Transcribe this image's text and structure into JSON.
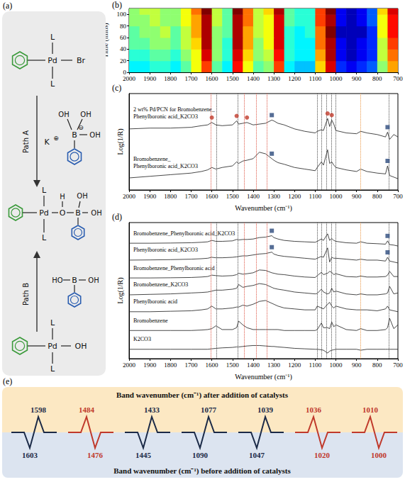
{
  "panel_a": {
    "letter": "(a)",
    "path_a": "Path A",
    "path_b": "Path B",
    "pd_br_complex": {
      "ligand": "L",
      "metal": "Pd",
      "group": "Br"
    },
    "borate": {
      "cation": "K",
      "cation_charge": "⊕",
      "boron": "B",
      "hydroxyl": "OH",
      "anion_charge": "⊖"
    },
    "intermediate": {
      "ligand": "L",
      "metal": "Pd",
      "oxygen": "O",
      "hydrogen": "H",
      "boron": "B",
      "hydroxyl": "OH"
    },
    "boronic_acid": {
      "boron": "B",
      "hydroxyl_left": "HO",
      "hydroxyl": "OH"
    },
    "pd_oh_complex": {
      "ligand": "L",
      "metal": "Pd",
      "group": "OH"
    }
  },
  "chart_data": [
    {
      "type": "heatmap",
      "letter": "(b)",
      "y_label": "Time (mins)",
      "x_bins": [
        2000,
        1950,
        1900,
        1850,
        1800,
        1750,
        1700,
        1650,
        1600,
        1550,
        1500,
        1450,
        1400,
        1350,
        1300,
        1250,
        1200,
        1150,
        1100,
        1050,
        1000,
        950,
        900,
        850,
        800,
        750,
        700
      ],
      "y_bins": [
        0,
        20,
        40,
        60,
        80,
        100,
        110
      ],
      "cells": [
        [
          0.35,
          0.35,
          0.4,
          0.4,
          0.35,
          0.45,
          0.6,
          0.8,
          0.45,
          0.35,
          0.85,
          0.6,
          0.45,
          0.5,
          0.8,
          0.35,
          0.3,
          0.3,
          0.65,
          0.9,
          0.15,
          0.1,
          0.15,
          0.2,
          0.5,
          0.7
        ],
        [
          0.4,
          0.4,
          0.45,
          0.45,
          0.4,
          0.5,
          0.6,
          0.9,
          0.5,
          0.4,
          0.9,
          0.65,
          0.5,
          0.55,
          0.85,
          0.4,
          0.35,
          0.35,
          0.7,
          0.95,
          0.1,
          0.05,
          0.1,
          0.15,
          0.55,
          0.75
        ],
        [
          0.45,
          0.45,
          0.5,
          0.5,
          0.45,
          0.55,
          0.65,
          0.95,
          0.5,
          0.4,
          0.95,
          0.7,
          0.5,
          0.6,
          0.9,
          0.4,
          0.35,
          0.35,
          0.75,
          0.95,
          0.1,
          0.05,
          0.1,
          0.15,
          0.55,
          0.8
        ],
        [
          0.45,
          0.5,
          0.5,
          0.55,
          0.45,
          0.55,
          0.7,
          0.95,
          0.5,
          0.45,
          0.95,
          0.7,
          0.55,
          0.6,
          0.9,
          0.4,
          0.35,
          0.4,
          0.75,
          1.0,
          0.05,
          0.05,
          0.05,
          0.15,
          0.6,
          0.85
        ],
        [
          0.5,
          0.5,
          0.55,
          0.5,
          0.5,
          0.6,
          0.7,
          0.95,
          0.55,
          0.45,
          0.95,
          0.75,
          0.55,
          0.6,
          0.9,
          0.45,
          0.4,
          0.4,
          0.8,
          0.95,
          0.1,
          0.05,
          0.1,
          0.2,
          0.6,
          0.85
        ],
        [
          0.5,
          0.55,
          0.55,
          0.5,
          0.5,
          0.6,
          0.75,
          1.0,
          0.55,
          0.45,
          1.0,
          0.75,
          0.55,
          0.65,
          0.95,
          0.45,
          0.4,
          0.4,
          0.8,
          1.0,
          0.1,
          0.05,
          0.1,
          0.2,
          0.65,
          0.9
        ]
      ],
      "zlim": [
        0,
        1
      ],
      "xlim": [
        2000,
        700
      ],
      "xticks": [
        2000,
        1900,
        1800,
        1700,
        1600,
        1500,
        1400,
        1300,
        1200,
        1100,
        1000,
        900,
        800,
        700
      ],
      "ylim": [
        0,
        110
      ],
      "yticks": [
        0,
        20,
        40,
        60,
        80,
        100
      ]
    },
    {
      "type": "line",
      "letter": "(c)",
      "x_label": "Wavenumber (cm⁻¹)",
      "y_label": "Log(1/R)",
      "tick_labels": "x",
      "x": [
        2000,
        1900,
        1800,
        1700,
        1650,
        1620,
        1600,
        1580,
        1550,
        1500,
        1480,
        1470,
        1450,
        1430,
        1400,
        1370,
        1340,
        1310,
        1300,
        1280,
        1250,
        1200,
        1150,
        1100,
        1090,
        1070,
        1060,
        1040,
        1030,
        1020,
        1010,
        1000,
        950,
        900,
        880,
        850,
        800,
        760,
        750,
        740,
        720,
        700
      ],
      "series": [
        {
          "name": "2 wt% Pd/PCN for Bromobenzene_Phenylboronic acid_K2CO3",
          "color": "#1a1a1a",
          "values": [
            7.6,
            7.7,
            7.7,
            7.8,
            8.0,
            8.1,
            8.4,
            8.1,
            8.0,
            8.1,
            8.6,
            8.2,
            8.3,
            8.4,
            8.1,
            8.2,
            8.3,
            8.7,
            8.6,
            8.3,
            8.1,
            7.6,
            7.3,
            7.1,
            7.3,
            7.5,
            7.4,
            8.9,
            7.9,
            8.7,
            8.2,
            7.4,
            7.1,
            7.0,
            7.3,
            7.1,
            6.9,
            6.6,
            7.2,
            6.3,
            6.9,
            6.6
          ],
          "markers": [
            {
              "x": 1600,
              "marker": "circle",
              "color": "#c0392b"
            },
            {
              "x": 1480,
              "marker": "circle",
              "color": "#c0392b"
            },
            {
              "x": 1430,
              "marker": "circle",
              "color": "#c0392b"
            },
            {
              "x": 1040,
              "marker": "circle",
              "color": "#c0392b"
            },
            {
              "x": 1020,
              "marker": "circle",
              "color": "#c0392b"
            },
            {
              "x": 1310,
              "marker": "square",
              "color": "#2c4a7c"
            },
            {
              "x": 750,
              "marker": "square",
              "color": "#2c4a7c"
            }
          ]
        },
        {
          "name": "Bromobenzene_Phenylboronic acid_K2CO3",
          "color": "#1a1a1a",
          "values": [
            1.5,
            1.7,
            1.9,
            2.1,
            2.3,
            2.5,
            2.8,
            2.6,
            2.8,
            3.0,
            3.5,
            3.3,
            3.6,
            3.7,
            3.9,
            4.7,
            4.5,
            3.9,
            3.7,
            3.4,
            3.2,
            2.8,
            2.6,
            2.4,
            2.8,
            3.5,
            3.1,
            5.0,
            3.3,
            3.5,
            3.1,
            2.8,
            2.5,
            2.3,
            2.6,
            2.3,
            2.1,
            2.0,
            3.0,
            1.8,
            1.6,
            1.4
          ],
          "markers": [
            {
              "x": 1310,
              "marker": "square",
              "color": "#2c4a7c"
            },
            {
              "x": 750,
              "marker": "square",
              "color": "#2c4a7c"
            }
          ]
        }
      ],
      "ref_lines": [
        {
          "x": 1603,
          "color": "#d9412e"
        },
        {
          "x": 1578,
          "color": "#333333"
        },
        {
          "x": 1476,
          "color": "#333333"
        },
        {
          "x": 1445,
          "color": "#d9412e"
        },
        {
          "x": 1385,
          "color": "#d9412e"
        },
        {
          "x": 1335,
          "color": "#d9412e"
        },
        {
          "x": 1090,
          "color": "#333333"
        },
        {
          "x": 1068,
          "color": "#333333"
        },
        {
          "x": 1047,
          "color": "#333333"
        },
        {
          "x": 1020,
          "color": "#333333"
        },
        {
          "x": 1000,
          "color": "#333333"
        },
        {
          "x": 880,
          "color": "#e8892b"
        },
        {
          "x": 745,
          "color": "#333333"
        }
      ],
      "xlim": [
        2000,
        700
      ],
      "xticks": [
        2000,
        1900,
        1800,
        1700,
        1600,
        1500,
        1400,
        1300,
        1200,
        1100,
        1000,
        900,
        800,
        700
      ],
      "ylim": [
        0,
        12
      ],
      "yticks": []
    },
    {
      "type": "line",
      "letter": "(d)",
      "x_label": "Wavenumber (cm⁻¹)",
      "y_label": "Log(1/R)",
      "tick_labels": "x",
      "x": [
        2000,
        1900,
        1800,
        1700,
        1650,
        1620,
        1600,
        1580,
        1550,
        1500,
        1480,
        1470,
        1450,
        1430,
        1400,
        1370,
        1340,
        1310,
        1300,
        1280,
        1250,
        1200,
        1150,
        1100,
        1090,
        1070,
        1060,
        1040,
        1030,
        1020,
        1010,
        1000,
        950,
        900,
        880,
        850,
        800,
        760,
        750,
        740,
        720,
        700
      ],
      "series": [
        {
          "name": "Bromobenzene_Phenylboronic acid_K2CO3",
          "color": "#1a1a1a",
          "values": [
            12.3,
            12.3,
            12.32,
            12.35,
            12.4,
            12.45,
            12.6,
            12.5,
            12.5,
            12.55,
            12.7,
            12.65,
            12.7,
            12.7,
            12.75,
            12.9,
            12.95,
            13.1,
            12.9,
            12.75,
            12.6,
            12.5,
            12.45,
            12.4,
            12.5,
            12.75,
            12.6,
            13.3,
            12.6,
            12.8,
            12.6,
            12.5,
            12.35,
            12.3,
            12.45,
            12.3,
            12.25,
            12.2,
            12.55,
            12.15,
            12.1,
            12.0
          ],
          "markers": [
            {
              "x": 1310,
              "marker": "square",
              "color": "#2c4a7c"
            },
            {
              "x": 750,
              "marker": "square",
              "color": "#2c4a7c"
            }
          ]
        },
        {
          "name": "Phenylboronic acid_K2CO3",
          "color": "#1a1a1a",
          "values": [
            10.5,
            10.52,
            10.55,
            10.6,
            10.65,
            10.7,
            10.8,
            10.75,
            10.75,
            10.8,
            10.85,
            10.9,
            10.95,
            10.95,
            11.05,
            11.15,
            11.2,
            11.35,
            11.15,
            11.0,
            10.9,
            10.8,
            10.7,
            10.6,
            10.7,
            10.9,
            10.8,
            11.8,
            10.3,
            10.8,
            10.7,
            10.7,
            10.6,
            10.5,
            10.6,
            10.5,
            10.5,
            10.4,
            10.8,
            10.4,
            10.3,
            10.2
          ],
          "markers": [
            {
              "x": 1310,
              "marker": "square",
              "color": "#2c4a7c"
            },
            {
              "x": 750,
              "marker": "square",
              "color": "#2c4a7c"
            }
          ]
        },
        {
          "name": "Bromobenzene_Phenylboronic acid",
          "color": "#1a1a1a",
          "values": [
            8.6,
            8.6,
            8.62,
            8.65,
            8.7,
            8.75,
            8.9,
            8.85,
            8.8,
            8.85,
            8.95,
            9.1,
            9.0,
            9.05,
            9.15,
            9.45,
            9.4,
            9.15,
            9.1,
            9.0,
            8.95,
            8.8,
            8.7,
            8.65,
            8.85,
            9.2,
            8.95,
            9.1,
            9.3,
            9.2,
            8.95,
            9.05,
            8.75,
            8.7,
            8.8,
            8.7,
            8.7,
            8.75,
            8.9,
            9.3,
            8.75,
            8.75
          ]
        },
        {
          "name": "Bromobenzene_K2CO3",
          "color": "#1a1a1a",
          "values": [
            6.8,
            6.85,
            6.9,
            7.0,
            7.05,
            7.1,
            7.2,
            7.3,
            7.3,
            7.4,
            7.5,
            7.9,
            7.6,
            7.7,
            7.8,
            8.0,
            7.9,
            7.6,
            7.5,
            7.4,
            7.3,
            7.1,
            7.0,
            6.9,
            6.95,
            7.4,
            7.1,
            6.9,
            7.0,
            7.5,
            7.1,
            7.2,
            6.9,
            6.8,
            6.9,
            6.8,
            6.8,
            6.9,
            7.0,
            7.7,
            6.9,
            7.0
          ]
        },
        {
          "name": "Phenylboronic acid",
          "color": "#1a1a1a",
          "values": [
            5.0,
            5.0,
            5.05,
            5.1,
            5.2,
            5.3,
            5.6,
            5.3,
            5.3,
            5.4,
            5.5,
            5.5,
            5.7,
            5.6,
            5.8,
            6.1,
            6.2,
            5.9,
            5.8,
            5.6,
            5.4,
            5.3,
            5.2,
            5.2,
            5.6,
            5.4,
            5.3,
            5.8,
            6.0,
            5.6,
            5.4,
            5.6,
            5.3,
            5.2,
            5.2,
            5.2,
            5.1,
            5.3,
            5.6,
            5.2,
            5.1,
            5.0
          ]
        },
        {
          "name": "Bromobenzene",
          "color": "#1a1a1a",
          "values": [
            3.0,
            3.0,
            3.0,
            3.0,
            3.05,
            3.1,
            3.2,
            3.5,
            3.1,
            3.1,
            3.3,
            4.0,
            3.6,
            3.3,
            3.1,
            3.1,
            3.1,
            3.1,
            3.1,
            3.1,
            3.0,
            3.0,
            3.0,
            3.0,
            3.1,
            3.8,
            3.3,
            3.3,
            3.2,
            3.9,
            3.4,
            3.6,
            3.1,
            3.0,
            3.2,
            3.0,
            3.0,
            3.1,
            3.3,
            4.3,
            3.2,
            3.6
          ]
        },
        {
          "name": "K2CO3",
          "color": "#1a1a1a",
          "values": [
            1.0,
            1.0,
            1.0,
            1.0,
            1.0,
            1.0,
            1.05,
            1.1,
            1.15,
            1.2,
            1.25,
            1.25,
            1.3,
            1.35,
            1.4,
            1.4,
            1.35,
            1.3,
            1.3,
            1.25,
            1.2,
            1.1,
            1.05,
            1.0,
            1.0,
            0.95,
            0.9,
            0.6,
            0.8,
            0.9,
            0.95,
            1.0,
            1.0,
            1.0,
            0.9,
            1.0,
            1.0,
            1.0,
            1.0,
            1.0,
            1.0,
            1.0
          ]
        }
      ],
      "ref_lines": [
        {
          "x": 1603,
          "color": "#d9412e"
        },
        {
          "x": 1578,
          "color": "#333333"
        },
        {
          "x": 1476,
          "color": "#333333"
        },
        {
          "x": 1445,
          "color": "#d9412e"
        },
        {
          "x": 1385,
          "color": "#d9412e"
        },
        {
          "x": 1335,
          "color": "#d9412e"
        },
        {
          "x": 1090,
          "color": "#333333"
        },
        {
          "x": 1068,
          "color": "#333333"
        },
        {
          "x": 1047,
          "color": "#333333"
        },
        {
          "x": 1020,
          "color": "#333333"
        },
        {
          "x": 1000,
          "color": "#333333"
        },
        {
          "x": 880,
          "color": "#e8892b"
        },
        {
          "x": 745,
          "color": "#333333"
        }
      ],
      "xlim": [
        2000,
        700
      ],
      "xticks": [
        2000,
        1900,
        1800,
        1700,
        1600,
        1500,
        1400,
        1300,
        1200,
        1100,
        1000,
        900,
        800,
        700
      ],
      "ylim": [
        0,
        14.5
      ],
      "yticks": []
    }
  ],
  "panel_e": {
    "letter": "(e)",
    "title_after": "Band wavenumber (cm⁻¹) after addition of catalysts",
    "title_before": "Band wavenumber (cm⁻¹) before addition of catalysts",
    "shifts": [
      {
        "after": 1598,
        "before": 1603,
        "color": "#1b2a47"
      },
      {
        "after": 1484,
        "before": 1476,
        "color": "#c0392b"
      },
      {
        "after": 1433,
        "before": 1445,
        "color": "#1b2a47"
      },
      {
        "after": 1077,
        "before": 1090,
        "color": "#1b2a47"
      },
      {
        "after": 1039,
        "before": 1047,
        "color": "#1b2a47"
      },
      {
        "after": 1036,
        "before": 1020,
        "color": "#c0392b"
      },
      {
        "after": 1010,
        "before": 1000,
        "color": "#c0392b"
      }
    ]
  }
}
